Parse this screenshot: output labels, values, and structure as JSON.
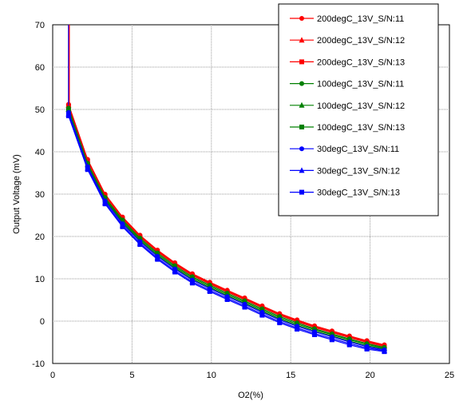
{
  "chart_data": {
    "type": "line",
    "title": "",
    "xlabel": "O2(%)",
    "ylabel": "Output Voltage (mV)",
    "xlim": [
      0,
      25
    ],
    "ylim": [
      -10,
      70
    ],
    "xticks": [
      "0",
      "5",
      "10",
      "15",
      "20",
      "25"
    ],
    "yticks": [
      "-10",
      "0",
      "10",
      "20",
      "30",
      "40",
      "50",
      "60",
      "70"
    ],
    "grid": true,
    "legend_position": "top-right",
    "x": [
      1.0,
      2.2,
      3.3,
      4.4,
      5.5,
      6.6,
      7.7,
      8.8,
      9.9,
      11.0,
      12.1,
      13.2,
      14.3,
      15.4,
      16.5,
      17.6,
      18.7,
      19.8,
      20.9
    ],
    "series": [
      {
        "name": "200degC_13V_S/N:11",
        "color": "#ff0000",
        "marker": "circle",
        "values": [
          51.2,
          38.2,
          30.0,
          24.6,
          20.3,
          16.8,
          13.8,
          11.2,
          9.2,
          7.3,
          5.5,
          3.6,
          1.8,
          0.3,
          -1.1,
          -2.3,
          -3.5,
          -4.6,
          -5.6
        ]
      },
      {
        "name": "200degC_13V_S/N:12",
        "color": "#ff0000",
        "marker": "triangle",
        "values": [
          51.0,
          38.0,
          29.8,
          24.4,
          20.1,
          16.6,
          13.6,
          11.0,
          9.0,
          7.1,
          5.3,
          3.4,
          1.6,
          0.1,
          -1.3,
          -2.5,
          -3.7,
          -4.8,
          -5.8
        ]
      },
      {
        "name": "200degC_13V_S/N:13",
        "color": "#ff0000",
        "marker": "square",
        "values": [
          50.8,
          37.8,
          29.6,
          24.2,
          19.9,
          16.4,
          13.4,
          10.8,
          8.8,
          6.9,
          5.1,
          3.2,
          1.4,
          -0.1,
          -1.5,
          -2.7,
          -3.9,
          -5.0,
          -6.0
        ]
      },
      {
        "name": "100degC_13V_S/N:11",
        "color": "#008000",
        "marker": "circle",
        "values": [
          50.3,
          37.3,
          29.2,
          23.9,
          19.6,
          16.1,
          13.1,
          10.5,
          8.5,
          6.6,
          4.8,
          2.9,
          1.1,
          -0.4,
          -1.8,
          -3.0,
          -4.2,
          -5.3,
          -6.2
        ]
      },
      {
        "name": "100degC_13V_S/N:12",
        "color": "#008000",
        "marker": "triangle",
        "values": [
          50.0,
          37.0,
          29.0,
          23.6,
          19.3,
          15.8,
          12.8,
          10.2,
          8.2,
          6.3,
          4.5,
          2.6,
          0.8,
          -0.7,
          -2.0,
          -3.2,
          -4.4,
          -5.5,
          -6.4
        ]
      },
      {
        "name": "100degC_13V_S/N:13",
        "color": "#008000",
        "marker": "square",
        "values": [
          49.7,
          36.7,
          28.7,
          23.3,
          19.0,
          15.5,
          12.5,
          9.9,
          7.9,
          6.0,
          4.2,
          2.3,
          0.5,
          -1.0,
          -2.3,
          -3.5,
          -4.7,
          -5.8,
          -6.6
        ]
      },
      {
        "name": "30degC_13V_S/N:11",
        "color": "#0000ff",
        "marker": "circle",
        "values": [
          49.3,
          36.5,
          28.4,
          23.0,
          18.8,
          15.3,
          12.3,
          9.7,
          7.7,
          5.8,
          4.0,
          2.1,
          0.3,
          -1.2,
          -2.5,
          -3.7,
          -4.9,
          -6.0,
          -6.8
        ]
      },
      {
        "name": "30degC_13V_S/N:12",
        "color": "#0000ff",
        "marker": "triangle",
        "values": [
          48.9,
          36.1,
          28.0,
          22.6,
          18.4,
          14.9,
          11.9,
          9.3,
          7.3,
          5.4,
          3.6,
          1.7,
          -0.1,
          -1.6,
          -2.9,
          -4.1,
          -5.3,
          -6.3,
          -7.0
        ]
      },
      {
        "name": "30degC_13V_S/N:13",
        "color": "#0000ff",
        "marker": "square",
        "values": [
          48.5,
          35.8,
          27.7,
          22.3,
          18.1,
          14.6,
          11.6,
          9.0,
          7.0,
          5.1,
          3.3,
          1.4,
          -0.4,
          -1.9,
          -3.2,
          -4.4,
          -5.6,
          -6.6,
          -7.2
        ]
      }
    ],
    "spike": {
      "x": [
        1.0,
        1.0
      ],
      "y": [
        70,
        51.0
      ]
    }
  }
}
